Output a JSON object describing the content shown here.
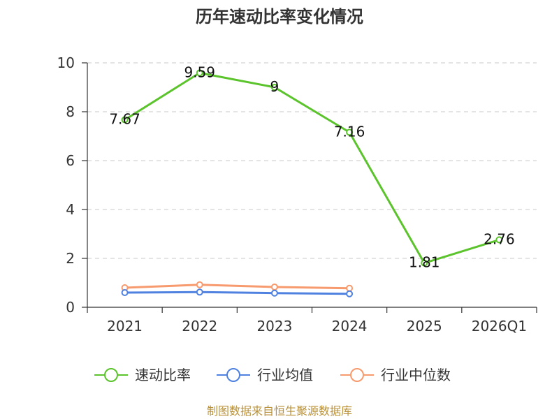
{
  "source_note": "制图数据来自恒生聚源数据库",
  "chart_data": {
    "type": "line",
    "title": "历年速动比率变化情况",
    "categories": [
      "2021",
      "2022",
      "2023",
      "2024",
      "2025",
      "2026Q1"
    ],
    "ylim": [
      0,
      10
    ],
    "yticks": [
      0,
      2,
      4,
      6,
      8,
      10
    ],
    "grid": true,
    "legend_position": "bottom",
    "series": [
      {
        "name": "速动比率",
        "color": "#5bc32b",
        "show_labels": true,
        "values": [
          7.67,
          9.59,
          9,
          7.16,
          1.81,
          2.76
        ]
      },
      {
        "name": "行业均值",
        "color": "#4f81e0",
        "show_labels": false,
        "values": [
          0.6,
          0.62,
          0.58,
          0.55,
          null,
          null
        ]
      },
      {
        "name": "行业中位数",
        "color": "#f79a6e",
        "show_labels": false,
        "values": [
          0.8,
          0.92,
          0.83,
          0.78,
          null,
          null
        ]
      }
    ]
  }
}
